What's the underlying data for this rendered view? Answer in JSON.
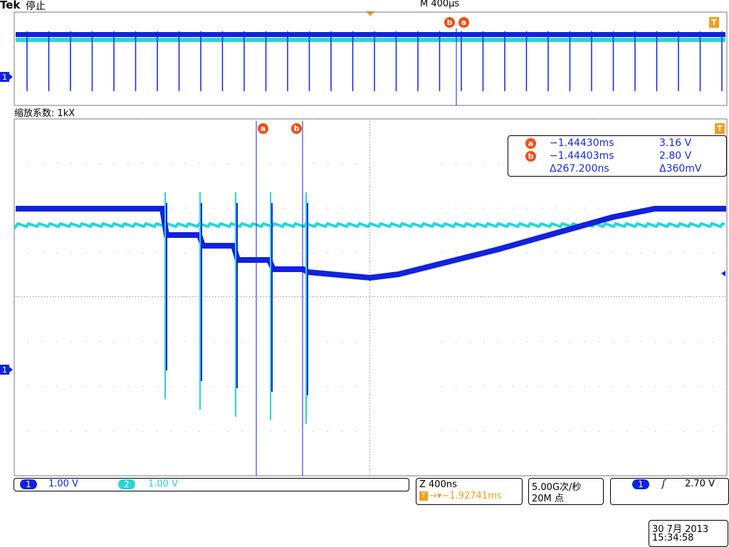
{
  "header": {
    "brand": "Tek",
    "state": "停止",
    "timebase": "M 400μs"
  },
  "zoom": {
    "label": "缩放系数: 1kX"
  },
  "markers": {
    "a": "a",
    "b": "b",
    "trigger": "T",
    "ch1": "1"
  },
  "cursor_readout": {
    "rows": [
      {
        "marker": "a",
        "time": "−1.44430ms",
        "volt": "3.16 V"
      },
      {
        "marker": "b",
        "time": "−1.44403ms",
        "volt": "2.80 V"
      },
      {
        "marker": "",
        "time": "Δ267.200ns",
        "volt": "Δ360mV"
      }
    ]
  },
  "channels": {
    "ch1": {
      "num": "1",
      "scale": "1.00 V",
      "color": "#1122dd"
    },
    "ch2": {
      "num": "2",
      "scale": "1.00 V",
      "color": "#2bd4d4"
    }
  },
  "zoom_panel": {
    "scale": "Z 400ns",
    "trigger_pos": "→▾−1.92741ms"
  },
  "acquisition": {
    "rate": "5.00G次/秒",
    "points": "20M 点"
  },
  "trigger": {
    "channel": "1",
    "slope": "ʃ",
    "level": "2.70 V"
  },
  "datetime": {
    "date": "30 7月  2013",
    "time": "15:34:58"
  }
}
